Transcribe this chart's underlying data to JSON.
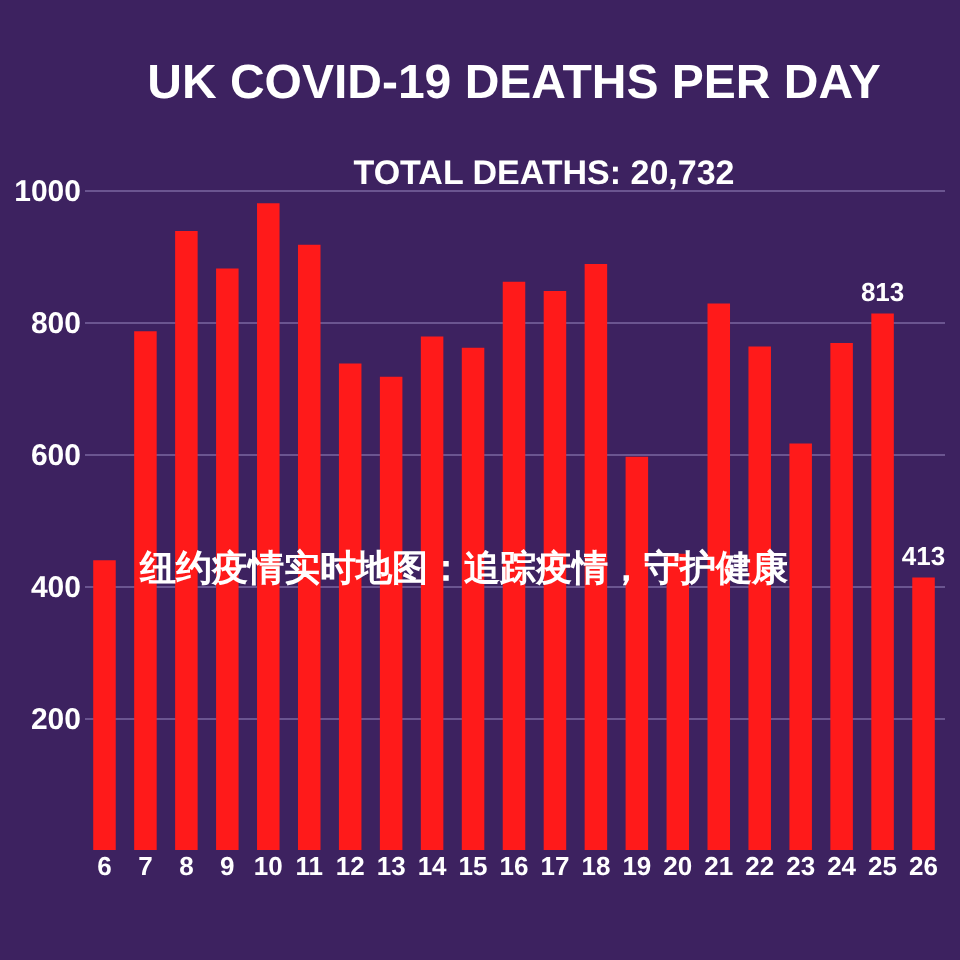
{
  "chart_data": {
    "type": "bar",
    "title": "UK COVID-19 DEATHS PER DAY",
    "categories": [
      "6",
      "7",
      "8",
      "9",
      "10",
      "11",
      "12",
      "13",
      "14",
      "15",
      "16",
      "17",
      "18",
      "19",
      "20",
      "21",
      "22",
      "23",
      "24",
      "25",
      "26"
    ],
    "values": [
      439,
      786,
      938,
      881,
      980,
      917,
      737,
      717,
      778,
      761,
      861,
      847,
      888,
      596,
      449,
      828,
      763,
      616,
      768,
      813,
      413
    ],
    "value_labels": [
      null,
      null,
      null,
      null,
      null,
      null,
      null,
      null,
      null,
      null,
      null,
      null,
      null,
      null,
      null,
      null,
      null,
      null,
      null,
      "813",
      "413"
    ],
    "color": "#ff1a1a",
    "ylim": [
      0,
      1000
    ],
    "yticks": [
      200,
      400,
      600,
      800,
      {
        "value": 1000,
        "label": "1000"
      }
    ],
    "grid": "y",
    "annotations": [
      "TOTAL DEATHS: 20,732",
      "纽约疫情实时地图：追踪疫情，守护健康"
    ]
  }
}
